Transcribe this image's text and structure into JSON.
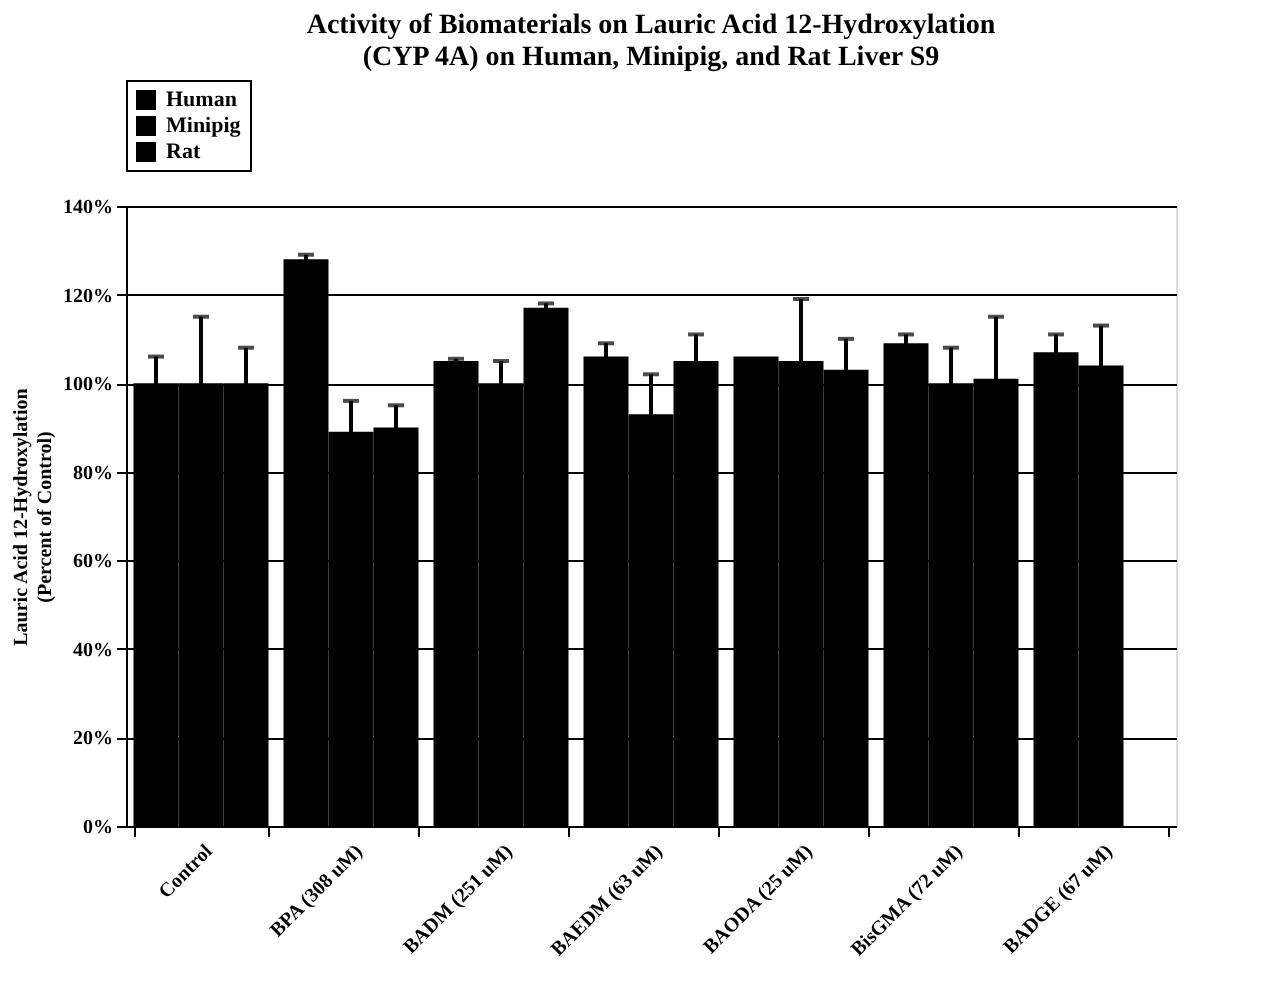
{
  "chart_data": {
    "type": "bar",
    "title": [
      "Activity of Biomaterials on Lauric Acid 12-Hydroxylation",
      "(CYP 4A) on Human, Minipig, and Rat Liver S9"
    ],
    "ylabel": [
      "Lauric Acid 12-Hydroxylation",
      "(Percent of Control)"
    ],
    "categories": [
      "Control",
      "BPA (308 uM)",
      "BADM (251 uM)",
      "BAEDM (63 uM)",
      "BAODA (25 uM)",
      "BisGMA (72 uM)",
      "BADGE (67 uM)"
    ],
    "series": [
      {
        "name": "Human",
        "color": "#000000",
        "values": [
          100,
          128,
          105,
          106,
          106,
          109,
          107
        ],
        "errors": [
          6,
          1,
          0.5,
          3,
          null,
          2,
          4
        ]
      },
      {
        "name": "Minipig",
        "color": "#000000",
        "values": [
          100,
          89,
          100,
          93,
          105,
          100,
          104
        ],
        "errors": [
          15,
          7,
          5,
          9,
          14,
          8,
          9
        ]
      },
      {
        "name": "Rat",
        "color": "#000000",
        "values": [
          100,
          90,
          117,
          105,
          103,
          101,
          null
        ],
        "errors": [
          8,
          5,
          1,
          6,
          7,
          14,
          null
        ]
      }
    ],
    "ylim": [
      0,
      140
    ],
    "yticks": [
      {
        "value": 0,
        "label": "0%"
      },
      {
        "value": 20,
        "label": "20%"
      },
      {
        "value": 40,
        "label": "40%"
      },
      {
        "value": 60,
        "label": "60%"
      },
      {
        "value": 80,
        "label": "80%"
      },
      {
        "value": 100,
        "label": "100%"
      },
      {
        "value": 120,
        "label": "120%"
      },
      {
        "value": 140,
        "label": "140%"
      }
    ],
    "grid": "y",
    "legend": "top"
  }
}
